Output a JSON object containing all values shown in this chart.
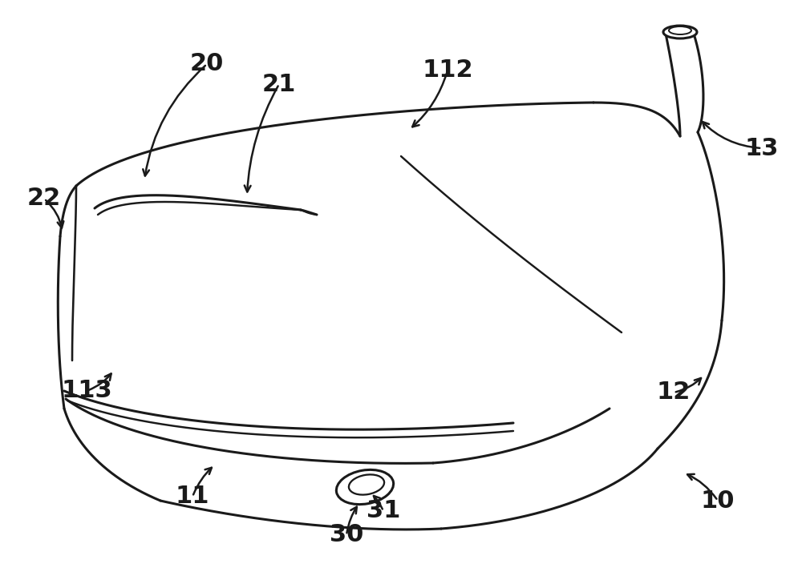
{
  "bg_color": "#ffffff",
  "lc": "#1a1a1a",
  "lw": 2.2
}
